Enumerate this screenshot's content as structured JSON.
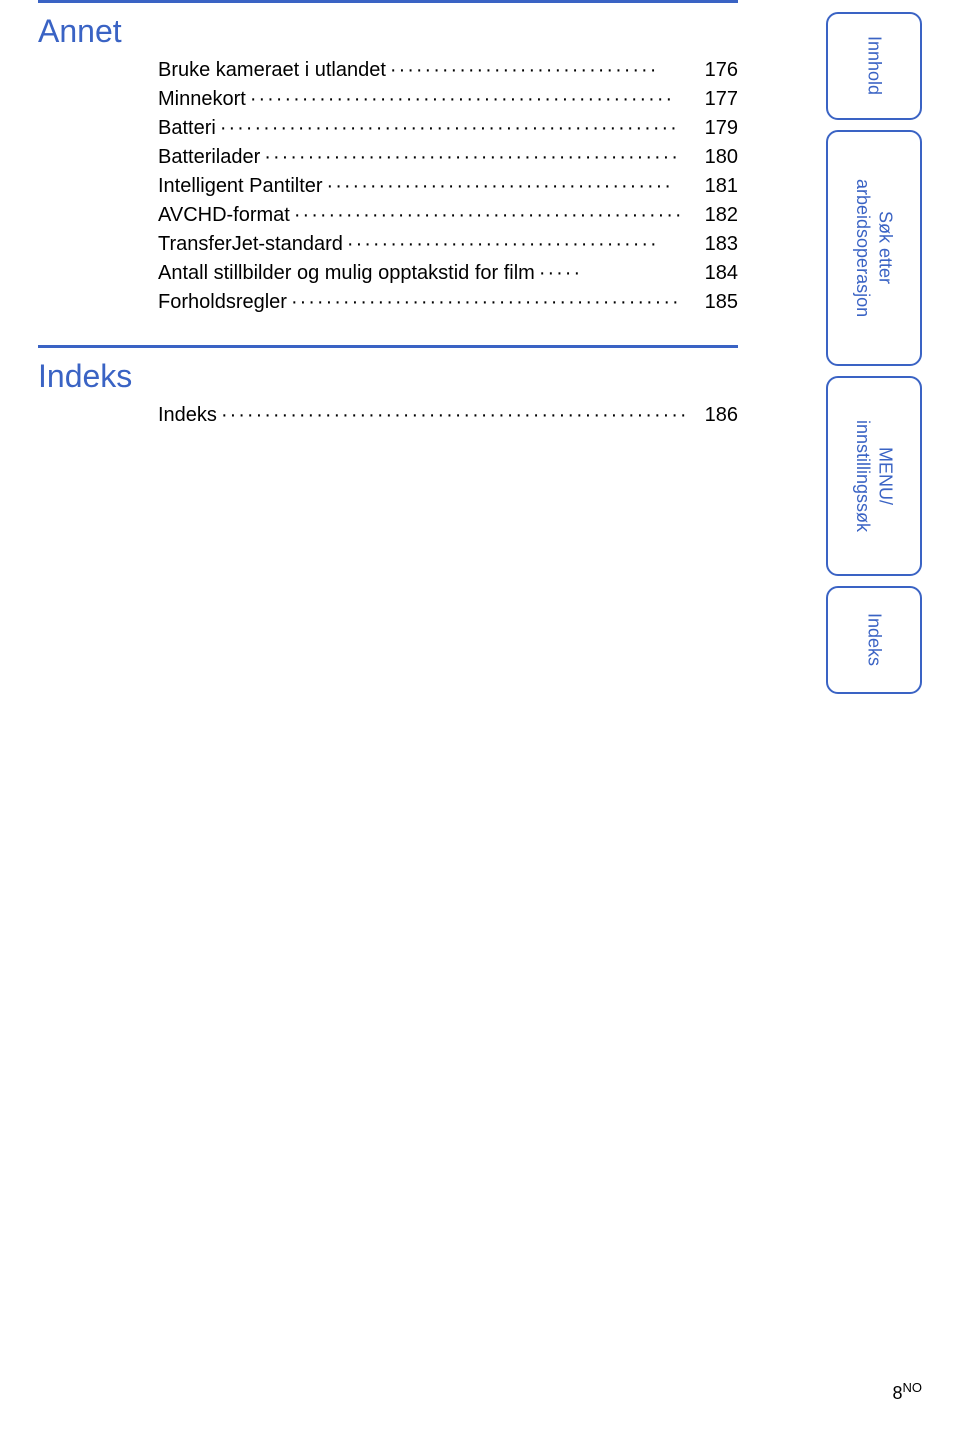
{
  "colors": {
    "accent": "#3a63c4",
    "text": "#000000",
    "background": "#ffffff"
  },
  "sections": [
    {
      "heading": "Annet",
      "entries": [
        {
          "label": "Bruke kameraet i utlandet",
          "page": "176"
        },
        {
          "label": "Minnekort",
          "page": "177"
        },
        {
          "label": "Batteri",
          "page": "179"
        },
        {
          "label": "Batterilader",
          "page": "180"
        },
        {
          "label": "Intelligent Pantilter",
          "page": "181"
        },
        {
          "label": "AVCHD-format",
          "page": "182"
        },
        {
          "label": "TransferJet-standard",
          "page": "183"
        },
        {
          "label": "Antall stillbilder og mulig opptakstid for film",
          "page": "184"
        },
        {
          "label": "Forholdsregler",
          "page": "185"
        }
      ]
    },
    {
      "heading": "Indeks",
      "entries": [
        {
          "label": "Indeks",
          "page": "186"
        }
      ]
    }
  ],
  "tabs": [
    "Innhold",
    "Søk etter\narbeidsoperasjon",
    "MENU/\ninnstillingssøk",
    "Indeks"
  ],
  "footer": {
    "page": "8",
    "suffix": "NO"
  },
  "typography": {
    "heading_fontsize": 32,
    "toc_fontsize": 20,
    "tab_fontsize": 18
  }
}
